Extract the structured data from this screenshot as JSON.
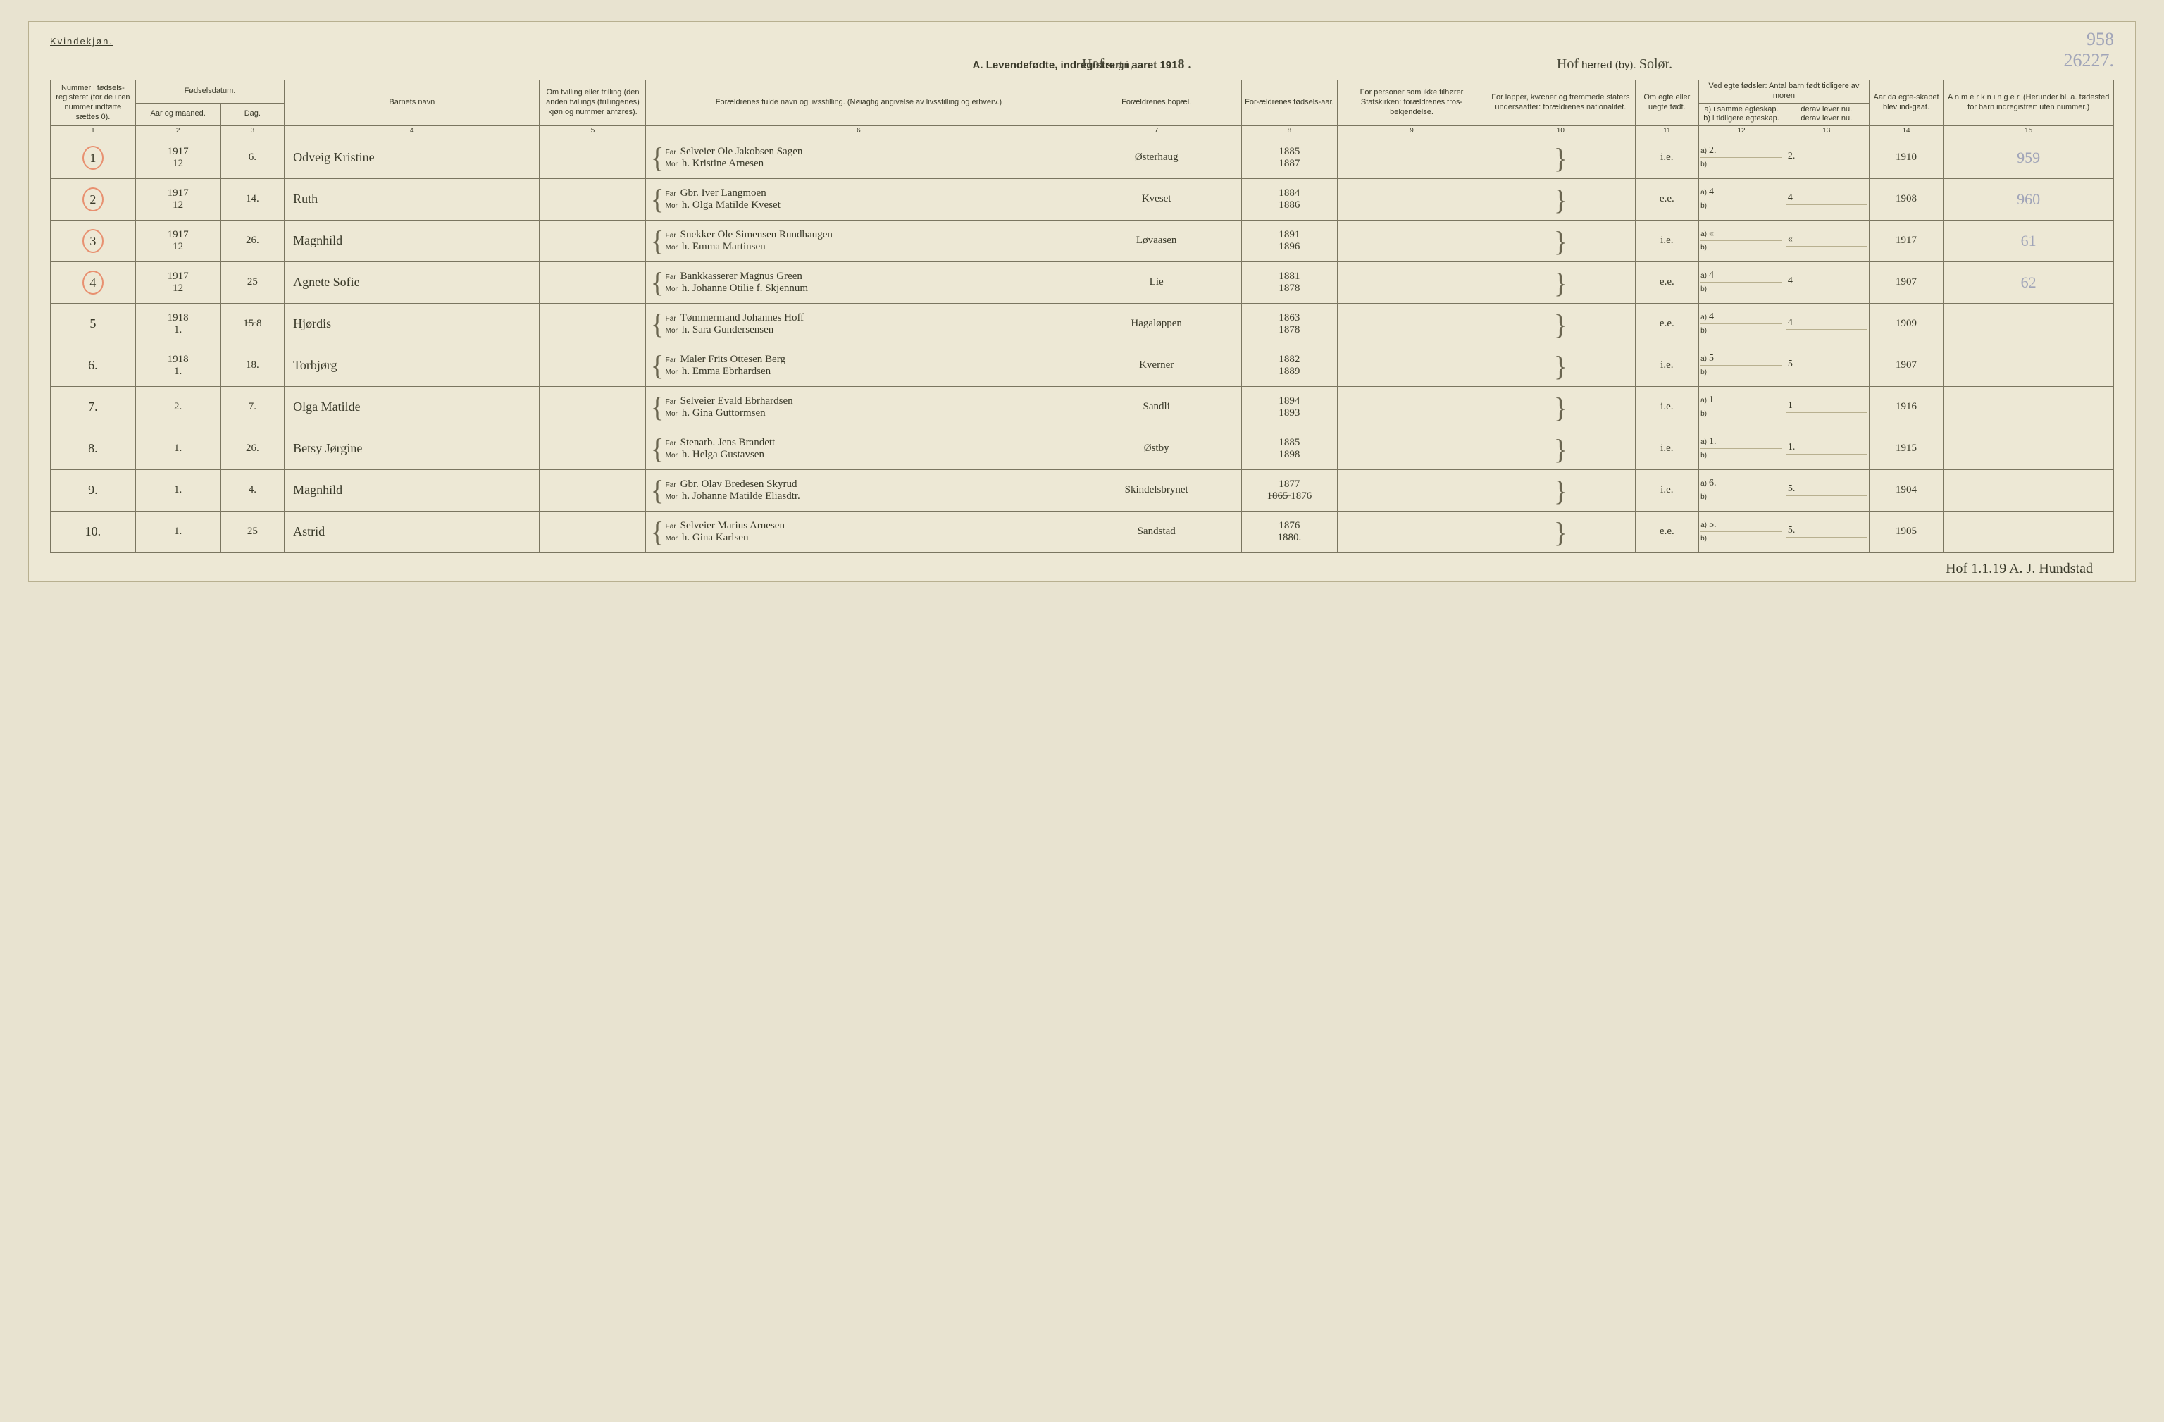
{
  "header": {
    "gender": "Kvindekjøn.",
    "title_prefix": "A. Levendefødte, indregistrert i aaret 191",
    "year_suffix": "8 .",
    "sogn_script": "Hof",
    "sogn_label": "sogn,",
    "herred_script": "Hof",
    "herred_label": "herred (by).",
    "herred_extra": "Solør.",
    "pencil_top": "958",
    "pencil_under": "26227."
  },
  "columns": {
    "c1": "Nummer i fødsels-registeret (for de uten nummer indførte sættes 0).",
    "c2_top": "Fødselsdatum.",
    "c2a": "Aar og maaned.",
    "c2b": "Dag.",
    "c4": "Barnets navn",
    "c5": "Om tvilling eller trilling (den anden tvillings (trillingenes) kjøn og nummer anføres).",
    "c6": "Forældrenes fulde navn og livsstilling. (Nøiagtig angivelse av livsstilling og erhverv.)",
    "c7": "Forældrenes bopæl.",
    "c8": "For-ældrenes fødsels-aar.",
    "c9": "For personer som ikke tilhører Statskirken: forældrenes tros-bekjendelse.",
    "c10": "For lapper, kvæner og fremmede staters undersaatter: forældrenes nationalitet.",
    "c11": "Om egte eller uegte født.",
    "c12_top": "Ved egte fødsler: Antal barn født tidligere av moren",
    "c12a": "a) i samme egteskap.",
    "c12b": "b) i tidligere egteskap.",
    "c13a": "derav lever nu.",
    "c13b": "derav lever nu.",
    "c14": "Aar da egte-skapet blev ind-gaat.",
    "c15": "A n m e r k n i n g e r. (Herunder bl. a. fødested for barn indregistrert uten nummer.)",
    "nums": [
      "1",
      "2",
      "3",
      "4",
      "5",
      "6",
      "7",
      "8",
      "9",
      "10",
      "11",
      "12",
      "13",
      "14",
      "15"
    ]
  },
  "rows": [
    {
      "n": "1",
      "circle": true,
      "yr": "1917",
      "mo": "12",
      "day": "6.",
      "name": "Odveig Kristine",
      "far": "Selveier Ole Jakobsen Sagen",
      "mor": "h. Kristine Arnesen",
      "bopael": "Østerhaug",
      "fy1": "1885",
      "fy2": "1887",
      "egte": "i.e.",
      "a": "2.",
      "al": "2.",
      "b": "",
      "marr": "1910",
      "anm": "959"
    },
    {
      "n": "2",
      "circle": true,
      "yr": "1917",
      "mo": "12",
      "day": "14.",
      "name": "Ruth",
      "far": "Gbr. Iver Langmoen",
      "mor": "h. Olga Matilde Kveset",
      "bopael": "Kveset",
      "fy1": "1884",
      "fy2": "1886",
      "egte": "e.e.",
      "a": "4",
      "al": "4",
      "b": "",
      "marr": "1908",
      "anm": "960"
    },
    {
      "n": "3",
      "circle": true,
      "yr": "1917",
      "mo": "12",
      "day": "26.",
      "name": "Magnhild",
      "far": "Snekker Ole Simensen Rundhaugen",
      "mor": "h. Emma Martinsen",
      "bopael": "Løvaasen",
      "fy1": "1891",
      "fy2": "1896",
      "egte": "i.e.",
      "a": "«",
      "al": "«",
      "b": "",
      "marr": "1917",
      "anm": "61"
    },
    {
      "n": "4",
      "circle": true,
      "yr": "1917",
      "mo": "12",
      "day": "25",
      "name": "Agnete Sofie",
      "far": "Bankkasserer Magnus Green",
      "mor": "h. Johanne Otilie f. Skjennum",
      "bopael": "Lie",
      "fy1": "1881",
      "fy2": "1878",
      "egte": "e.e.",
      "a": "4",
      "al": "4",
      "b": "",
      "marr": "1907",
      "anm": "62"
    },
    {
      "n": "5",
      "circle": false,
      "yr": "1918",
      "mo": "1.",
      "day": "1̶5̶ 8",
      "name": "Hjørdis",
      "far": "Tømmermand Johannes Hoff",
      "mor": "h. Sara Gundersensen",
      "bopael": "Hagaløppen",
      "fy1": "1863",
      "fy2": "1878",
      "egte": "e.e.",
      "a": "4",
      "al": "4",
      "b": "",
      "marr": "1909",
      "anm": ""
    },
    {
      "n": "6.",
      "circle": false,
      "yr": "1918",
      "mo": "1.",
      "day": "18.",
      "name": "Torbjørg",
      "far": "Maler Frits Ottesen Berg",
      "mor": "h. Emma Ebrhardsen",
      "bopael": "Kverner",
      "fy1": "1882",
      "fy2": "1889",
      "egte": "i.e.",
      "a": "5",
      "al": "5",
      "b": "",
      "marr": "1907",
      "anm": ""
    },
    {
      "n": "7.",
      "circle": false,
      "yr": "",
      "mo": "2.",
      "day": "7.",
      "name": "Olga Matilde",
      "far": "Selveier Evald Ebrhardsen",
      "mor": "h. Gina Guttormsen",
      "bopael": "Sandli",
      "fy1": "1894",
      "fy2": "1893",
      "egte": "i.e.",
      "a": "1",
      "al": "1",
      "b": "",
      "marr": "1916",
      "anm": ""
    },
    {
      "n": "8.",
      "circle": false,
      "yr": "",
      "mo": "1.",
      "day": "26.",
      "name": "Betsy Jørgine",
      "far": "Stenarb. Jens Brandett",
      "mor": "h. Helga Gustavsen",
      "bopael": "Østby",
      "fy1": "1885",
      "fy2": "1898",
      "egte": "i.e.",
      "a": "1.",
      "al": "1.",
      "b": "",
      "marr": "1915",
      "anm": ""
    },
    {
      "n": "9.",
      "circle": false,
      "yr": "",
      "mo": "1.",
      "day": "4.",
      "name": "Magnhild",
      "far": "Gbr. Olav Bredesen Skyrud",
      "mor": "h. Johanne Matilde Eliasdtr.",
      "bopael": "Skindelsbrynet",
      "fy1": "1877",
      "fy2": "1̶8̶6̶5̶ 1876",
      "egte": "i.e.",
      "a": "6.",
      "al": "5.",
      "b": "",
      "marr": "1904",
      "anm": ""
    },
    {
      "n": "10.",
      "circle": false,
      "yr": "",
      "mo": "1.",
      "day": "25",
      "name": "Astrid",
      "far": "Selveier Marius Arnesen",
      "mor": "h. Gina Karlsen",
      "bopael": "Sandstad",
      "fy1": "1876",
      "fy2": "1880.",
      "egte": "e.e.",
      "a": "5.",
      "al": "5.",
      "b": "",
      "marr": "1905",
      "anm": ""
    }
  ],
  "footer": "Hof 1.1.19 A. J. Hundstad"
}
